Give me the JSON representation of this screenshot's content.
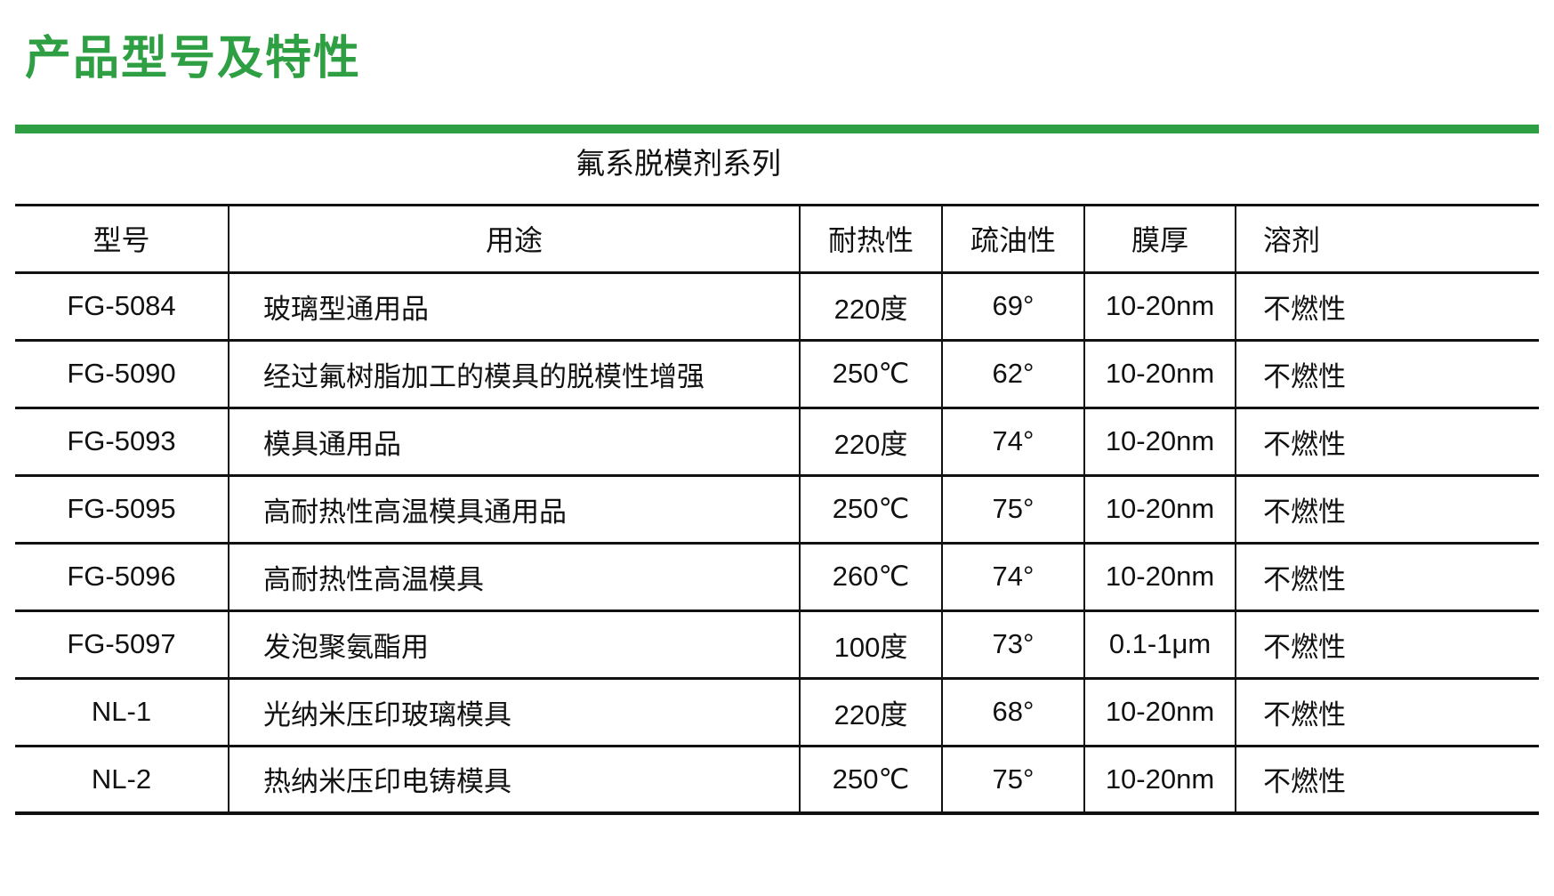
{
  "page": {
    "title": "产品型号及特性"
  },
  "colors": {
    "accent_green": "#2f9f44",
    "text": "#111111",
    "table_rule": "#111111"
  },
  "table": {
    "title": "氟系脱模剂系列",
    "columns": [
      "型号",
      "用途",
      "耐热性",
      "疏油性",
      "膜厚",
      "溶剂"
    ],
    "rows": [
      [
        "FG-5084",
        "玻璃型通用品",
        "220度",
        "69°",
        "10-20nm",
        "不燃性"
      ],
      [
        "FG-5090",
        "经过氟树脂加工的模具的脱模性增强",
        "250℃",
        "62°",
        "10-20nm",
        "不燃性"
      ],
      [
        "FG-5093",
        "模具通用品",
        "220度",
        "74°",
        "10-20nm",
        "不燃性"
      ],
      [
        "FG-5095",
        "高耐热性高温模具通用品",
        "250℃",
        "75°",
        "10-20nm",
        "不燃性"
      ],
      [
        "FG-5096",
        "高耐热性高温模具",
        "260℃",
        "74°",
        "10-20nm",
        "不燃性"
      ],
      [
        "FG-5097",
        "发泡聚氨酯用",
        "100度",
        "73°",
        "0.1-1μm",
        "不燃性"
      ],
      [
        "NL-1",
        "光纳米压印玻璃模具",
        "220度",
        "68°",
        "10-20nm",
        "不燃性"
      ],
      [
        "NL-2",
        "热纳米压印电铸模具",
        "250℃",
        "75°",
        "10-20nm",
        "不燃性"
      ]
    ]
  }
}
